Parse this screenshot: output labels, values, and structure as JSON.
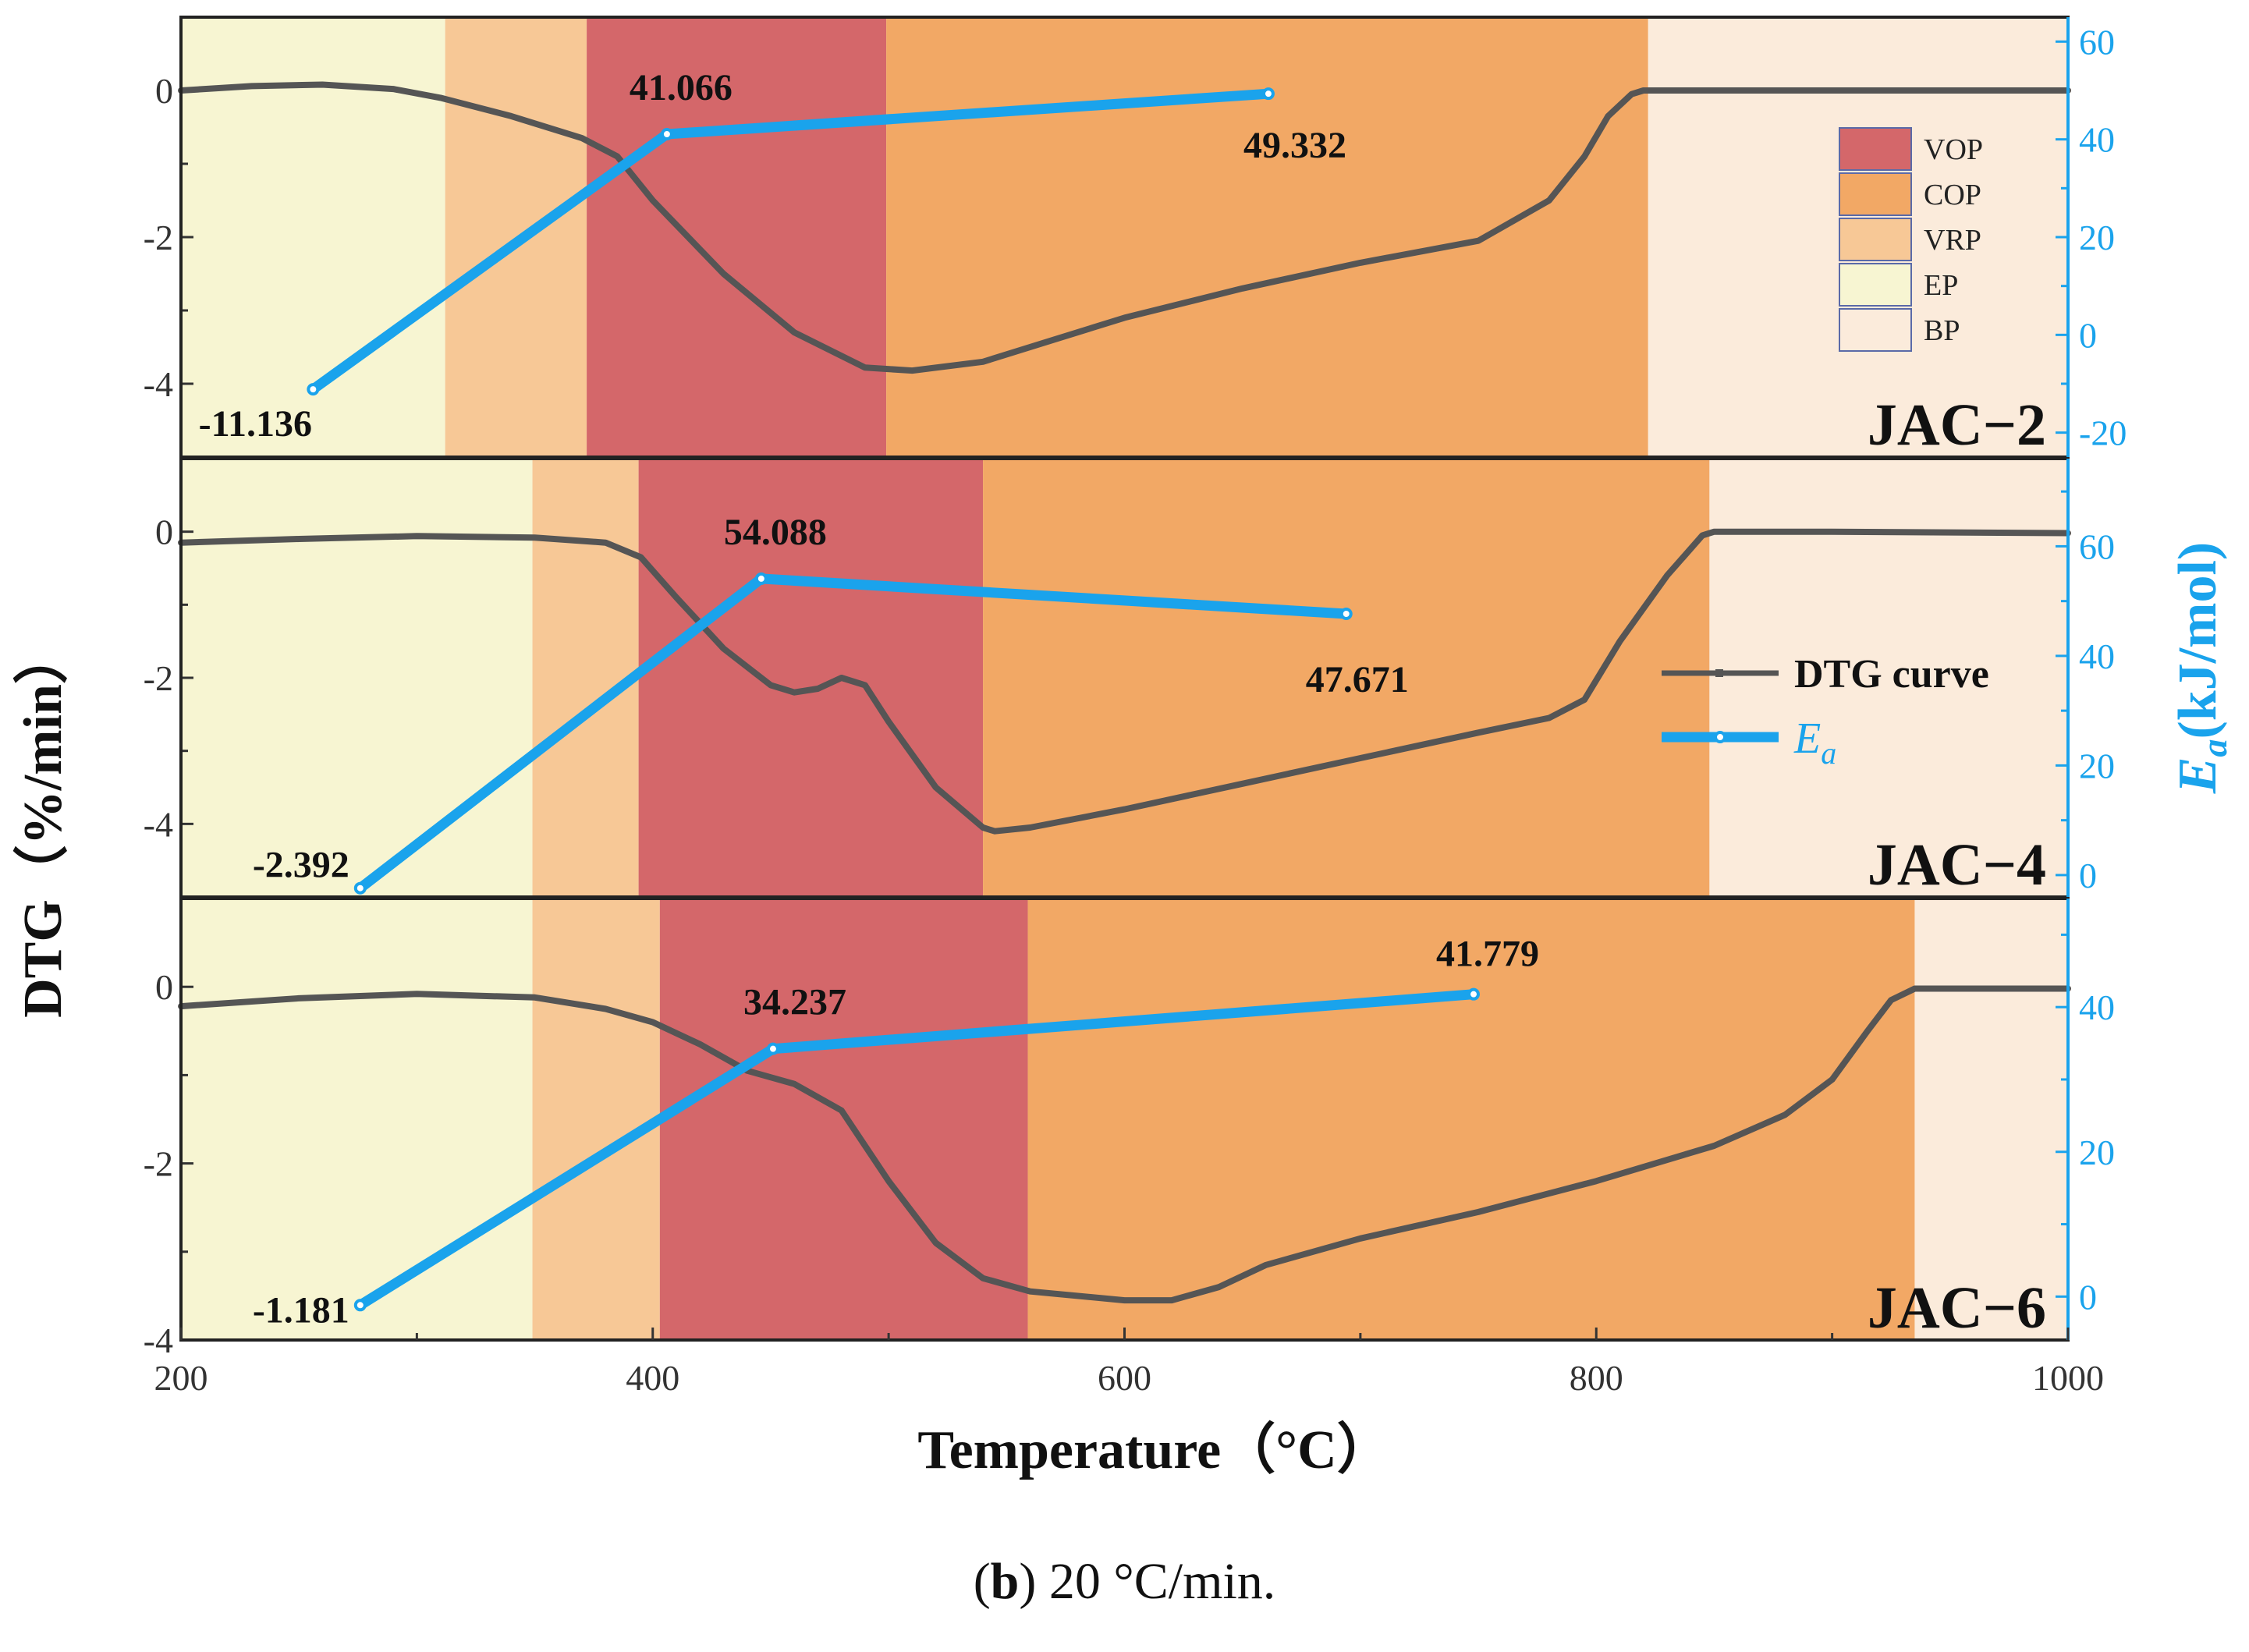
{
  "chart_data": {
    "type": "line",
    "caption": {
      "prefix": "(",
      "bold": "b",
      "suffix": ") 20 °C/min."
    },
    "xlabel": "Temperature（°C）",
    "ylabel": "DTG（%/min）",
    "ylabel_right_symbol": "E",
    "ylabel_right_sub": "a",
    "ylabel_right_rest": "(kJ/mol)",
    "xlim": [
      200,
      1000
    ],
    "xticks": [
      "200",
      "400",
      "600",
      "800",
      "1000"
    ],
    "xtick_values": [
      200,
      400,
      600,
      800,
      1000
    ],
    "colors": {
      "VOP": "#d4676a",
      "COP": "#f2a865",
      "VRP": "#f7c896",
      "EP": "#f7f5d2",
      "BP": "#fbebdb",
      "dtg": "#555555",
      "ea": "#1aa3ec"
    },
    "legend": {
      "stages": [
        {
          "key": "VOP",
          "label": "VOP"
        },
        {
          "key": "COP",
          "label": "COP"
        },
        {
          "key": "VRP",
          "label": "VRP"
        },
        {
          "key": "EP",
          "label": "EP"
        },
        {
          "key": "BP",
          "label": "BP"
        }
      ],
      "dtg_label": "DTG curve",
      "ea_symbol": "E",
      "ea_sub": "a"
    },
    "panels": [
      {
        "name": "JAC−2",
        "ylim": [
          -5,
          1
        ],
        "yticks": [
          0,
          -2,
          -4
        ],
        "ytick_labels": [
          "0",
          "-2",
          "-4"
        ],
        "ylim_right": [
          -25,
          65
        ],
        "yticks_right": [
          60,
          40,
          20,
          0,
          -20
        ],
        "ytick_labels_right": [
          "60",
          "40",
          "20",
          "0",
          "-20"
        ],
        "stages": [
          {
            "stage": "EP",
            "from": 200,
            "to": 312
          },
          {
            "stage": "VRP",
            "from": 312,
            "to": 372
          },
          {
            "stage": "VOP",
            "from": 372,
            "to": 499
          },
          {
            "stage": "COP",
            "from": 499,
            "to": 822
          },
          {
            "stage": "BP",
            "from": 822,
            "to": 1000
          }
        ],
        "dtg": {
          "x": [
            200,
            230,
            260,
            290,
            310,
            340,
            370,
            385,
            400,
            430,
            460,
            490,
            510,
            540,
            570,
            600,
            650,
            700,
            750,
            780,
            795,
            805,
            815,
            820,
            850,
            900,
            1000
          ],
          "y": [
            0.0,
            0.06,
            0.08,
            0.02,
            -0.1,
            -0.35,
            -0.65,
            -0.9,
            -1.5,
            -2.5,
            -3.3,
            -3.78,
            -3.82,
            -3.7,
            -3.4,
            -3.1,
            -2.7,
            -2.35,
            -2.05,
            -1.5,
            -0.9,
            -0.35,
            -0.05,
            0.0,
            0.0,
            0.0,
            0.0
          ]
        },
        "ea": {
          "x": [
            256,
            406,
            661
          ],
          "y": [
            -11.136,
            41.066,
            49.332
          ]
        },
        "ea_labels": [
          "-11.136",
          "41.066",
          "49.332"
        ]
      },
      {
        "name": "JAC−4",
        "ylim": [
          -5,
          1
        ],
        "yticks": [
          0,
          -2,
          -4
        ],
        "ytick_labels": [
          "0",
          "-2",
          "-4"
        ],
        "ylim_right": [
          -4,
          76
        ],
        "yticks_right": [
          60,
          40,
          20,
          0
        ],
        "ytick_labels_right": [
          "60",
          "40",
          "20",
          "0"
        ],
        "stages": [
          {
            "stage": "EP",
            "from": 200,
            "to": 349
          },
          {
            "stage": "VRP",
            "from": 349,
            "to": 394
          },
          {
            "stage": "VOP",
            "from": 394,
            "to": 540
          },
          {
            "stage": "COP",
            "from": 540,
            "to": 848
          },
          {
            "stage": "BP",
            "from": 848,
            "to": 1000
          }
        ],
        "dtg": {
          "x": [
            200,
            250,
            300,
            350,
            380,
            395,
            410,
            430,
            450,
            460,
            470,
            480,
            490,
            500,
            520,
            540,
            545,
            560,
            600,
            650,
            700,
            750,
            780,
            795,
            810,
            830,
            845,
            850,
            900,
            1000
          ],
          "y": [
            -0.15,
            -0.1,
            -0.06,
            -0.08,
            -0.15,
            -0.35,
            -0.9,
            -1.6,
            -2.1,
            -2.2,
            -2.15,
            -2.0,
            -2.1,
            -2.6,
            -3.5,
            -4.05,
            -4.1,
            -4.05,
            -3.8,
            -3.45,
            -3.1,
            -2.75,
            -2.55,
            -2.3,
            -1.5,
            -0.6,
            -0.05,
            0.0,
            0.0,
            -0.02
          ]
        },
        "ea": {
          "x": [
            276,
            446,
            694
          ],
          "y": [
            -2.392,
            54.088,
            47.671
          ]
        },
        "ea_labels": [
          "-2.392",
          "54.088",
          "47.671"
        ]
      },
      {
        "name": "JAC−6",
        "ylim": [
          -4,
          1
        ],
        "yticks": [
          0,
          -2,
          -4
        ],
        "ytick_labels": [
          "0",
          "-2",
          "-4"
        ],
        "ylim_right": [
          -6,
          55
        ],
        "yticks_right": [
          40,
          20,
          0
        ],
        "ytick_labels_right": [
          "40",
          "20",
          "0"
        ],
        "stages": [
          {
            "stage": "EP",
            "from": 200,
            "to": 349
          },
          {
            "stage": "VRP",
            "from": 349,
            "to": 403
          },
          {
            "stage": "VOP",
            "from": 403,
            "to": 559
          },
          {
            "stage": "COP",
            "from": 559,
            "to": 935
          },
          {
            "stage": "BP",
            "from": 935,
            "to": 1000
          }
        ],
        "dtg": {
          "x": [
            200,
            250,
            300,
            350,
            380,
            400,
            420,
            440,
            460,
            480,
            500,
            520,
            540,
            560,
            600,
            620,
            640,
            660,
            700,
            750,
            800,
            850,
            880,
            900,
            915,
            925,
            935,
            950,
            1000
          ],
          "y": [
            -0.22,
            -0.13,
            -0.08,
            -0.12,
            -0.25,
            -0.4,
            -0.65,
            -0.95,
            -1.1,
            -1.4,
            -2.2,
            -2.9,
            -3.3,
            -3.45,
            -3.55,
            -3.55,
            -3.4,
            -3.15,
            -2.85,
            -2.55,
            -2.2,
            -1.8,
            -1.45,
            -1.05,
            -0.5,
            -0.15,
            -0.02,
            -0.02,
            -0.02
          ]
        },
        "ea": {
          "x": [
            276,
            451,
            748
          ],
          "y": [
            -1.181,
            34.237,
            41.779
          ]
        },
        "ea_labels": [
          "-1.181",
          "34.237",
          "41.779"
        ]
      }
    ]
  }
}
